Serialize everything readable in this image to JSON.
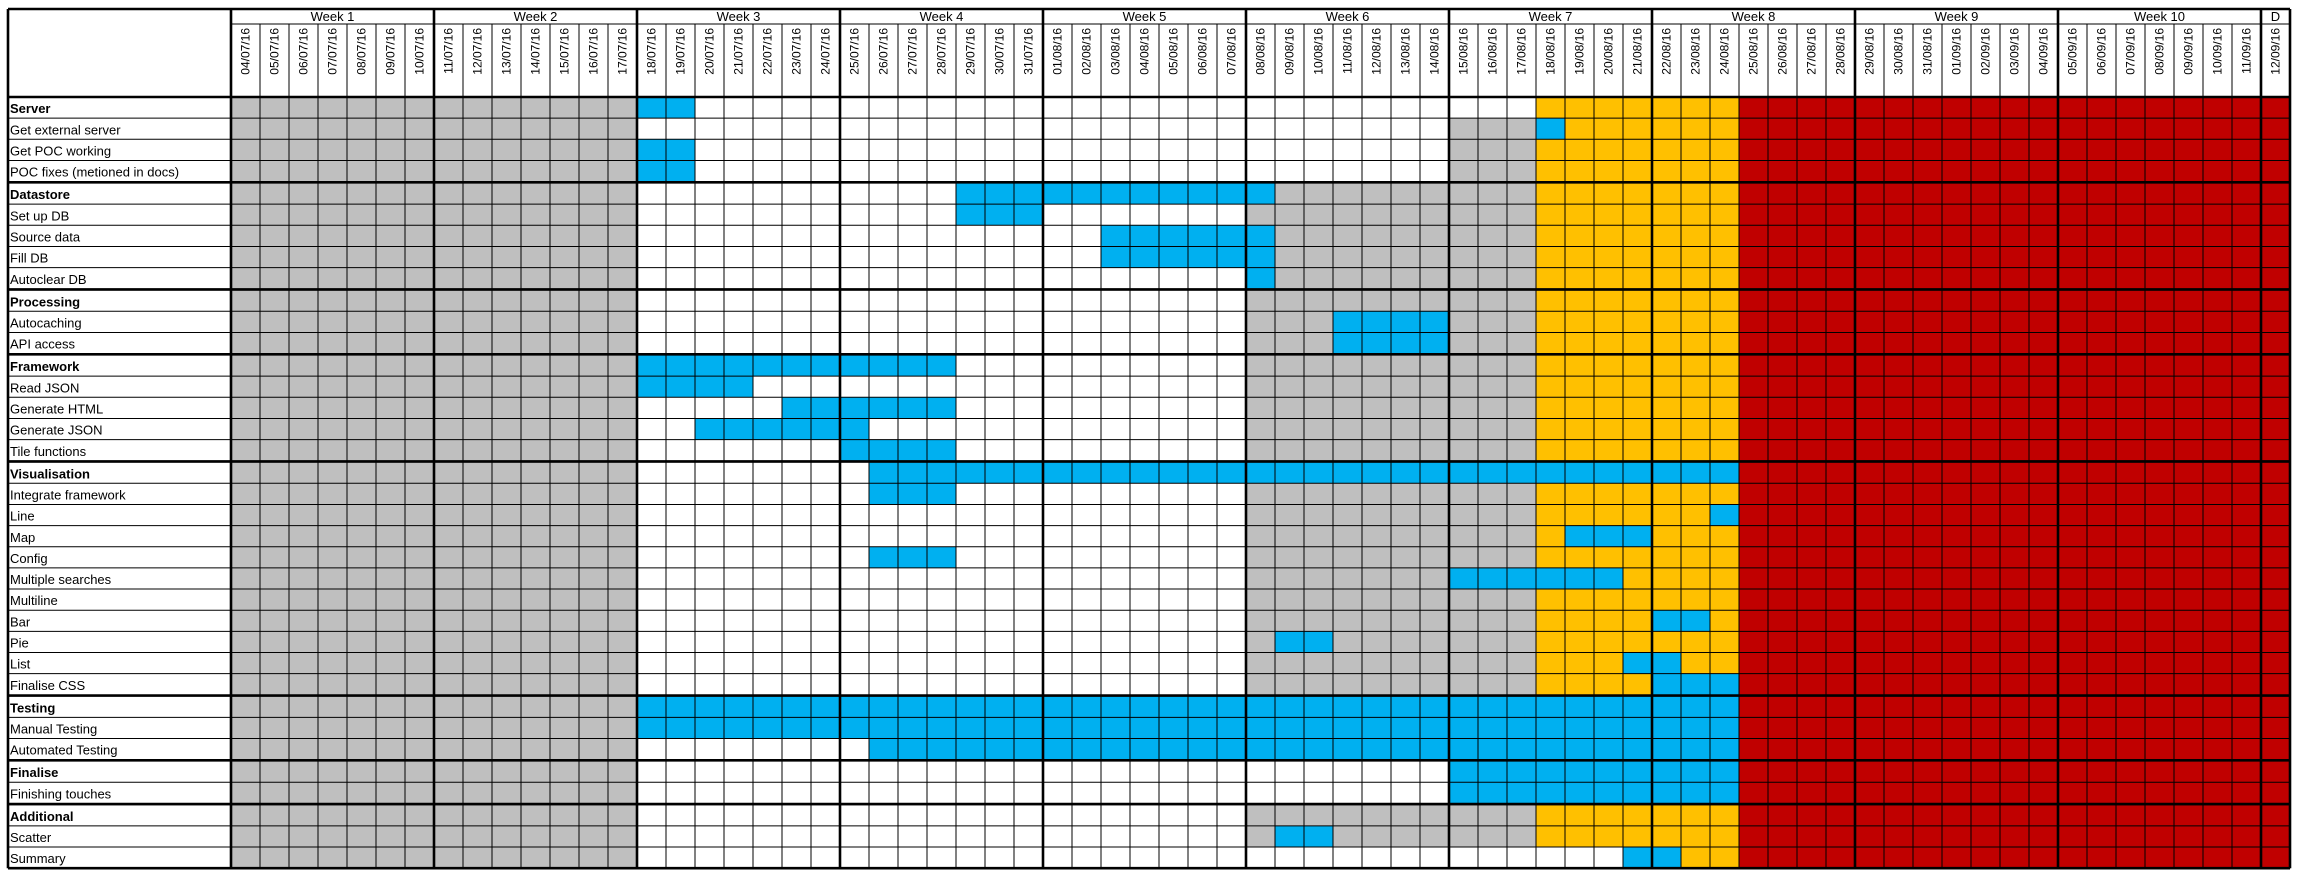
{
  "chart_data": {
    "type": "table",
    "title": "",
    "weeks": [
      "Week 1",
      "Week 2",
      "Week 3",
      "Week 4",
      "Week 5",
      "Week 6",
      "Week 7",
      "Week 8",
      "Week 9",
      "Week 10",
      "D"
    ],
    "dates": [
      "04/07/16",
      "05/07/16",
      "06/07/16",
      "07/07/16",
      "08/07/16",
      "09/07/16",
      "10/07/16",
      "11/07/16",
      "12/07/16",
      "13/07/16",
      "14/07/16",
      "15/07/16",
      "16/07/16",
      "17/07/16",
      "18/07/16",
      "19/07/16",
      "20/07/16",
      "21/07/16",
      "22/07/16",
      "23/07/16",
      "24/07/16",
      "25/07/16",
      "26/07/16",
      "27/07/16",
      "28/07/16",
      "29/07/16",
      "30/07/16",
      "31/07/16",
      "01/08/16",
      "02/08/16",
      "03/08/16",
      "04/08/16",
      "05/08/16",
      "06/08/16",
      "07/08/16",
      "08/08/16",
      "09/08/16",
      "10/08/16",
      "11/08/16",
      "12/08/16",
      "13/08/16",
      "14/08/16",
      "15/08/16",
      "16/08/16",
      "17/08/16",
      "18/08/16",
      "19/08/16",
      "20/08/16",
      "21/08/16",
      "22/08/16",
      "23/08/16",
      "24/08/16",
      "25/08/16",
      "26/08/16",
      "27/08/16",
      "28/08/16",
      "29/08/16",
      "30/08/16",
      "31/08/16",
      "01/09/16",
      "02/09/16",
      "03/09/16",
      "04/09/16",
      "05/09/16",
      "06/09/16",
      "07/09/16",
      "08/09/16",
      "09/09/16",
      "10/09/16",
      "11/09/16",
      "12/09/16"
    ],
    "colors": {
      "grey": "#bfbfbf",
      "white": "#ffffff",
      "blue": "#00b0f0",
      "orange": "#ffc000",
      "red": "#c00000",
      "gridline": "#000000"
    },
    "rows": [
      {
        "label": "Server",
        "header": true,
        "periods": [
          [
            0,
            13,
            "grey"
          ],
          [
            45,
            51,
            "orange"
          ],
          [
            52,
            70,
            "red"
          ]
        ],
        "tasks": [
          [
            14,
            15
          ]
        ]
      },
      {
        "label": "Get external server",
        "header": false,
        "periods": [
          [
            0,
            13,
            "grey"
          ],
          [
            42,
            44,
            "grey"
          ],
          [
            45,
            51,
            "orange"
          ],
          [
            52,
            70,
            "red"
          ]
        ],
        "tasks": [
          [
            45,
            45
          ]
        ]
      },
      {
        "label": "Get POC working",
        "header": false,
        "periods": [
          [
            0,
            13,
            "grey"
          ],
          [
            42,
            44,
            "grey"
          ],
          [
            45,
            51,
            "orange"
          ],
          [
            52,
            70,
            "red"
          ]
        ],
        "tasks": [
          [
            14,
            15
          ]
        ]
      },
      {
        "label": "POC fixes (metioned in docs)",
        "header": false,
        "periods": [
          [
            0,
            13,
            "grey"
          ],
          [
            42,
            44,
            "grey"
          ],
          [
            45,
            51,
            "orange"
          ],
          [
            52,
            70,
            "red"
          ]
        ],
        "tasks": [
          [
            14,
            15
          ]
        ]
      },
      {
        "label": "Datastore",
        "header": true,
        "periods": [
          [
            0,
            13,
            "grey"
          ],
          [
            35,
            44,
            "grey"
          ],
          [
            45,
            51,
            "orange"
          ],
          [
            52,
            70,
            "red"
          ]
        ],
        "tasks": [
          [
            25,
            35
          ]
        ]
      },
      {
        "label": "Set up DB",
        "header": false,
        "periods": [
          [
            0,
            13,
            "grey"
          ],
          [
            35,
            44,
            "grey"
          ],
          [
            45,
            51,
            "orange"
          ],
          [
            52,
            70,
            "red"
          ]
        ],
        "tasks": [
          [
            25,
            27
          ]
        ]
      },
      {
        "label": "Source data",
        "header": false,
        "periods": [
          [
            0,
            13,
            "grey"
          ],
          [
            35,
            44,
            "grey"
          ],
          [
            45,
            51,
            "orange"
          ],
          [
            52,
            70,
            "red"
          ]
        ],
        "tasks": [
          [
            30,
            35
          ]
        ]
      },
      {
        "label": "Fill DB",
        "header": false,
        "periods": [
          [
            0,
            13,
            "grey"
          ],
          [
            35,
            44,
            "grey"
          ],
          [
            45,
            51,
            "orange"
          ],
          [
            52,
            70,
            "red"
          ]
        ],
        "tasks": [
          [
            30,
            35
          ]
        ]
      },
      {
        "label": "Autoclear DB",
        "header": false,
        "periods": [
          [
            0,
            13,
            "grey"
          ],
          [
            35,
            44,
            "grey"
          ],
          [
            45,
            51,
            "orange"
          ],
          [
            52,
            70,
            "red"
          ]
        ],
        "tasks": [
          [
            35,
            35
          ]
        ]
      },
      {
        "label": "Processing",
        "header": true,
        "periods": [
          [
            0,
            13,
            "grey"
          ],
          [
            35,
            44,
            "grey"
          ],
          [
            45,
            51,
            "orange"
          ],
          [
            52,
            70,
            "red"
          ]
        ],
        "tasks": []
      },
      {
        "label": "Autocaching",
        "header": false,
        "periods": [
          [
            0,
            13,
            "grey"
          ],
          [
            35,
            44,
            "grey"
          ],
          [
            45,
            51,
            "orange"
          ],
          [
            52,
            70,
            "red"
          ]
        ],
        "tasks": [
          [
            38,
            41
          ]
        ]
      },
      {
        "label": "API access",
        "header": false,
        "periods": [
          [
            0,
            13,
            "grey"
          ],
          [
            35,
            44,
            "grey"
          ],
          [
            45,
            51,
            "orange"
          ],
          [
            52,
            70,
            "red"
          ]
        ],
        "tasks": [
          [
            38,
            41
          ]
        ]
      },
      {
        "label": "Framework",
        "header": true,
        "periods": [
          [
            0,
            13,
            "grey"
          ],
          [
            35,
            44,
            "grey"
          ],
          [
            45,
            51,
            "orange"
          ],
          [
            52,
            70,
            "red"
          ]
        ],
        "tasks": [
          [
            14,
            24
          ]
        ]
      },
      {
        "label": "Read JSON",
        "header": false,
        "periods": [
          [
            0,
            13,
            "grey"
          ],
          [
            35,
            44,
            "grey"
          ],
          [
            45,
            51,
            "orange"
          ],
          [
            52,
            70,
            "red"
          ]
        ],
        "tasks": [
          [
            14,
            17
          ]
        ]
      },
      {
        "label": "Generate HTML",
        "header": false,
        "periods": [
          [
            0,
            13,
            "grey"
          ],
          [
            35,
            44,
            "grey"
          ],
          [
            45,
            51,
            "orange"
          ],
          [
            52,
            70,
            "red"
          ]
        ],
        "tasks": [
          [
            19,
            24
          ]
        ]
      },
      {
        "label": "Generate JSON",
        "header": false,
        "periods": [
          [
            0,
            13,
            "grey"
          ],
          [
            35,
            44,
            "grey"
          ],
          [
            45,
            51,
            "orange"
          ],
          [
            52,
            70,
            "red"
          ]
        ],
        "tasks": [
          [
            16,
            21
          ]
        ]
      },
      {
        "label": "Tile functions",
        "header": false,
        "periods": [
          [
            0,
            13,
            "grey"
          ],
          [
            35,
            44,
            "grey"
          ],
          [
            45,
            51,
            "orange"
          ],
          [
            52,
            70,
            "red"
          ]
        ],
        "tasks": [
          [
            21,
            24
          ]
        ]
      },
      {
        "label": "Visualisation",
        "header": true,
        "periods": [
          [
            0,
            13,
            "grey"
          ],
          [
            35,
            44,
            "grey"
          ],
          [
            45,
            51,
            "orange"
          ],
          [
            52,
            70,
            "red"
          ]
        ],
        "tasks": [
          [
            22,
            51
          ]
        ]
      },
      {
        "label": "Integrate framework",
        "header": false,
        "periods": [
          [
            0,
            13,
            "grey"
          ],
          [
            35,
            44,
            "grey"
          ],
          [
            45,
            51,
            "orange"
          ],
          [
            52,
            70,
            "red"
          ]
        ],
        "tasks": [
          [
            22,
            24
          ]
        ]
      },
      {
        "label": "Line",
        "header": false,
        "periods": [
          [
            0,
            13,
            "grey"
          ],
          [
            35,
            44,
            "grey"
          ],
          [
            45,
            51,
            "orange"
          ],
          [
            52,
            70,
            "red"
          ]
        ],
        "tasks": [
          [
            51,
            51
          ]
        ]
      },
      {
        "label": "Map",
        "header": false,
        "periods": [
          [
            0,
            13,
            "grey"
          ],
          [
            35,
            44,
            "grey"
          ],
          [
            45,
            51,
            "orange"
          ],
          [
            52,
            70,
            "red"
          ]
        ],
        "tasks": [
          [
            46,
            48
          ]
        ]
      },
      {
        "label": "Config",
        "header": false,
        "periods": [
          [
            0,
            13,
            "grey"
          ],
          [
            35,
            44,
            "grey"
          ],
          [
            45,
            51,
            "orange"
          ],
          [
            52,
            70,
            "red"
          ]
        ],
        "tasks": [
          [
            22,
            24
          ]
        ]
      },
      {
        "label": "Multiple searches",
        "header": false,
        "periods": [
          [
            0,
            13,
            "grey"
          ],
          [
            35,
            44,
            "grey"
          ],
          [
            45,
            51,
            "orange"
          ],
          [
            52,
            70,
            "red"
          ]
        ],
        "tasks": [
          [
            42,
            47
          ]
        ]
      },
      {
        "label": "Multiline",
        "header": false,
        "periods": [
          [
            0,
            13,
            "grey"
          ],
          [
            35,
            44,
            "grey"
          ],
          [
            45,
            51,
            "orange"
          ],
          [
            52,
            70,
            "red"
          ]
        ],
        "tasks": []
      },
      {
        "label": "Bar",
        "header": false,
        "periods": [
          [
            0,
            13,
            "grey"
          ],
          [
            35,
            44,
            "grey"
          ],
          [
            45,
            51,
            "orange"
          ],
          [
            52,
            70,
            "red"
          ]
        ],
        "tasks": [
          [
            49,
            50
          ]
        ]
      },
      {
        "label": "Pie",
        "header": false,
        "periods": [
          [
            0,
            13,
            "grey"
          ],
          [
            35,
            44,
            "grey"
          ],
          [
            45,
            51,
            "orange"
          ],
          [
            52,
            70,
            "red"
          ]
        ],
        "tasks": [
          [
            36,
            37
          ]
        ]
      },
      {
        "label": "List",
        "header": false,
        "periods": [
          [
            0,
            13,
            "grey"
          ],
          [
            35,
            44,
            "grey"
          ],
          [
            45,
            51,
            "orange"
          ],
          [
            52,
            70,
            "red"
          ]
        ],
        "tasks": [
          [
            48,
            49
          ]
        ]
      },
      {
        "label": "Finalise CSS",
        "header": false,
        "periods": [
          [
            0,
            13,
            "grey"
          ],
          [
            35,
            44,
            "grey"
          ],
          [
            45,
            51,
            "orange"
          ],
          [
            52,
            70,
            "red"
          ]
        ],
        "tasks": [
          [
            49,
            51
          ]
        ]
      },
      {
        "label": "Testing",
        "header": true,
        "periods": [
          [
            0,
            13,
            "grey"
          ],
          [
            35,
            44,
            "grey"
          ],
          [
            45,
            51,
            "orange"
          ],
          [
            52,
            70,
            "red"
          ]
        ],
        "tasks": [
          [
            14,
            51
          ]
        ]
      },
      {
        "label": "Manual Testing",
        "header": false,
        "periods": [
          [
            0,
            13,
            "grey"
          ],
          [
            35,
            44,
            "grey"
          ],
          [
            45,
            51,
            "orange"
          ],
          [
            52,
            70,
            "red"
          ]
        ],
        "tasks": [
          [
            14,
            51
          ]
        ]
      },
      {
        "label": "Automated Testing",
        "header": false,
        "periods": [
          [
            0,
            13,
            "grey"
          ],
          [
            35,
            44,
            "grey"
          ],
          [
            45,
            51,
            "orange"
          ],
          [
            52,
            70,
            "red"
          ]
        ],
        "tasks": [
          [
            22,
            51
          ]
        ]
      },
      {
        "label": "Finalise",
        "header": true,
        "periods": [
          [
            0,
            13,
            "grey"
          ],
          [
            52,
            70,
            "red"
          ]
        ],
        "tasks": [
          [
            42,
            51
          ]
        ]
      },
      {
        "label": "Finishing touches",
        "header": false,
        "periods": [
          [
            0,
            13,
            "grey"
          ],
          [
            52,
            70,
            "red"
          ]
        ],
        "tasks": [
          [
            42,
            51
          ]
        ]
      },
      {
        "label": "Additional",
        "header": true,
        "periods": [
          [
            0,
            13,
            "grey"
          ],
          [
            35,
            44,
            "grey"
          ],
          [
            45,
            51,
            "orange"
          ],
          [
            52,
            70,
            "red"
          ]
        ],
        "tasks": []
      },
      {
        "label": "Scatter",
        "header": false,
        "periods": [
          [
            0,
            13,
            "grey"
          ],
          [
            35,
            44,
            "grey"
          ],
          [
            45,
            51,
            "orange"
          ],
          [
            52,
            70,
            "red"
          ]
        ],
        "tasks": [
          [
            36,
            37
          ]
        ]
      },
      {
        "label": "Summary",
        "header": false,
        "periods": [
          [
            0,
            13,
            "grey"
          ],
          [
            45,
            47,
            "white"
          ],
          [
            49,
            51,
            "orange"
          ],
          [
            52,
            70,
            "red"
          ]
        ],
        "tasks": [
          [
            48,
            49
          ]
        ]
      }
    ]
  }
}
